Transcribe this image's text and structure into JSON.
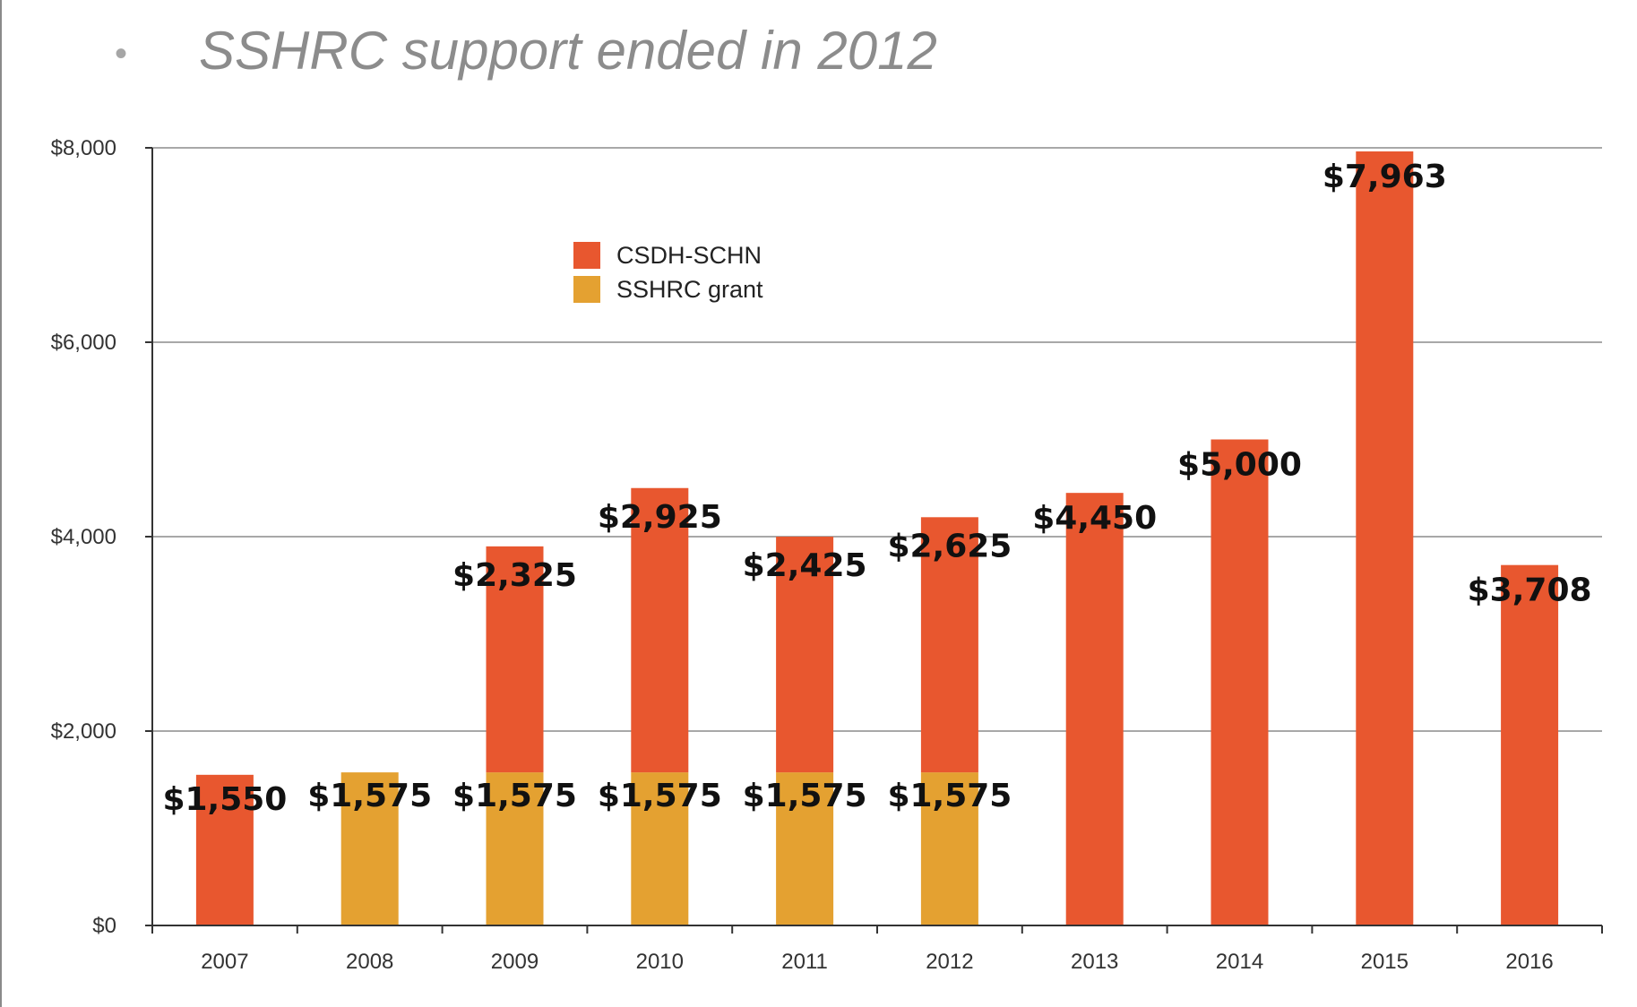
{
  "slide": {
    "bullet": "•",
    "headline": "SSHRC support ended in 2012"
  },
  "colors": {
    "csdh": "#E8572F",
    "sshrc": "#E4A131",
    "grid": "#8c8c8c",
    "axis": "#333333"
  },
  "chart_data": {
    "type": "bar",
    "stacked": true,
    "categories": [
      "2007",
      "2008",
      "2009",
      "2010",
      "2011",
      "2012",
      "2013",
      "2014",
      "2015",
      "2016"
    ],
    "series": [
      {
        "name": "SSHRC grant",
        "color": "#E4A131",
        "values": [
          0,
          1575,
          1575,
          1575,
          1575,
          1575,
          0,
          0,
          0,
          0
        ]
      },
      {
        "name": "CSDH-SCHN",
        "color": "#E8572F",
        "values": [
          1550,
          0,
          2325,
          2925,
          2425,
          2625,
          4450,
          5000,
          7963,
          3708
        ]
      }
    ],
    "data_labels": {
      "SSHRC grant": [
        "",
        "$1,575",
        "$1,575",
        "$1,575",
        "$1,575",
        "$1,575",
        "",
        "",
        "",
        ""
      ],
      "CSDH-SCHN": [
        "$1,550",
        "",
        "$2,325",
        "$2,925",
        "$2,425",
        "$2,625",
        "$4,450",
        "$5,000",
        "$7,963",
        "$3,708"
      ]
    },
    "ylim": [
      0,
      8000
    ],
    "yticks": [
      0,
      2000,
      4000,
      6000,
      8000
    ],
    "ytick_labels": [
      "$0",
      "$2,000",
      "$4,000",
      "$6,000",
      "$8,000"
    ],
    "legend": {
      "placement": "top-left inside",
      "entries": [
        "CSDH-SCHN",
        "SSHRC grant"
      ]
    },
    "grid": true
  }
}
